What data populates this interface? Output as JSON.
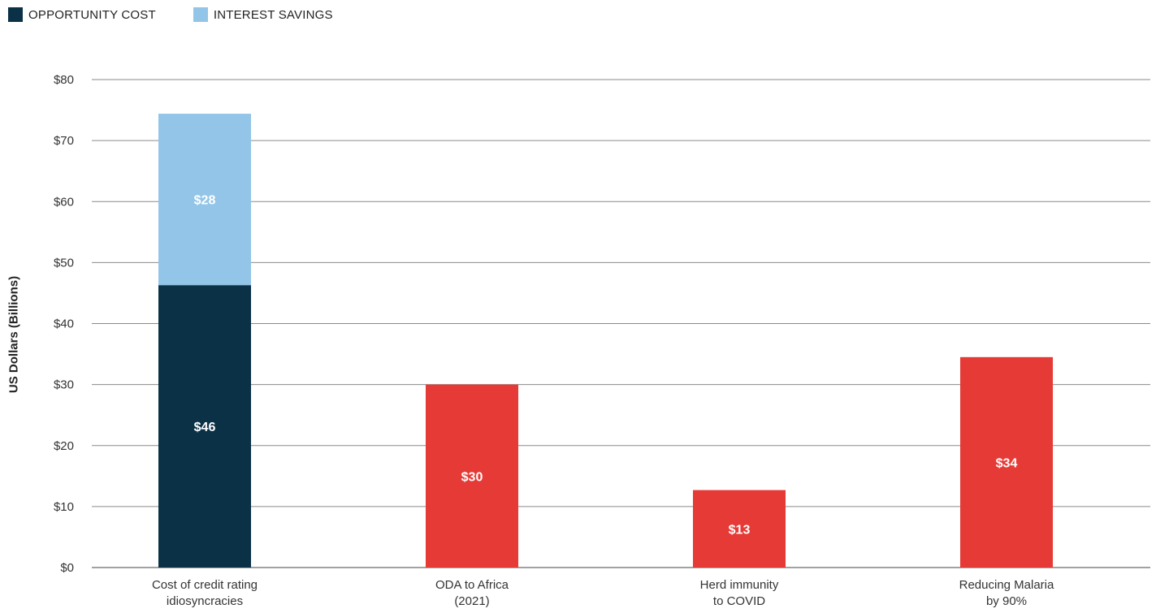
{
  "chart_data": {
    "type": "bar",
    "stacked": true,
    "title": "",
    "xlabel": "",
    "ylabel": "US Dollars (Billions)",
    "ylim": [
      0,
      80
    ],
    "yticks": [
      0,
      10,
      20,
      30,
      40,
      50,
      60,
      70,
      80
    ],
    "ytick_labels": [
      "$0",
      "$10",
      "$20",
      "$30",
      "$40",
      "$50",
      "$60",
      "$70",
      "$80"
    ],
    "grid": true,
    "legend_position": "top-left",
    "legend": [
      {
        "label": "OPPORTUNITY COST",
        "color": "#0b3147"
      },
      {
        "label": "INTEREST SAVINGS",
        "color": "#93c5e8"
      }
    ],
    "categories": [
      [
        "Cost of credit rating",
        "idiosyncracies"
      ],
      [
        "ODA to Africa",
        "(2021)"
      ],
      [
        "Herd immunity",
        "to COVID"
      ],
      [
        "Reducing Malaria",
        "by 90%"
      ]
    ],
    "bars": [
      {
        "segments": [
          {
            "series": "OPPORTUNITY COST",
            "value": 46.3,
            "label": "$46",
            "color": "#0b3147"
          },
          {
            "series": "INTEREST SAVINGS",
            "value": 28.1,
            "label": "$28",
            "color": "#93c5e8"
          }
        ]
      },
      {
        "segments": [
          {
            "value": 30,
            "label": "$30",
            "color": "#e63a36"
          }
        ]
      },
      {
        "segments": [
          {
            "value": 12.7,
            "label": "$13",
            "color": "#e63a36"
          }
        ]
      },
      {
        "segments": [
          {
            "value": 34.5,
            "label": "$34",
            "color": "#e63a36"
          }
        ]
      }
    ]
  }
}
